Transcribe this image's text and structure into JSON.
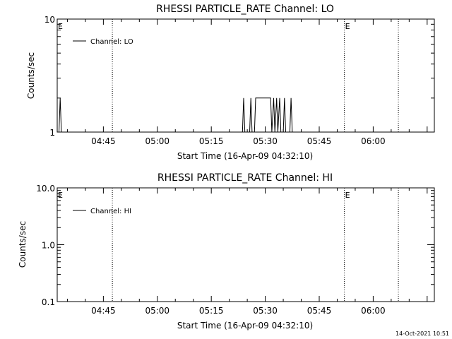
{
  "footer": {
    "timestamp": "14-Oct-2021 10:51"
  },
  "chart_data": [
    {
      "type": "line",
      "title": "RHESSI PARTICLE_RATE Channel: LO",
      "xlabel": "Start Time (16-Apr-09 04:32:10)",
      "ylabel": "Counts/sec",
      "yscale": "log",
      "ylim": [
        1,
        10
      ],
      "xlim": [
        "04:32:10",
        "06:17:00"
      ],
      "yticks": [
        "1",
        "10"
      ],
      "xticks": [
        "04:45",
        "05:00",
        "05:15",
        "05:30",
        "05:45",
        "06:00"
      ],
      "legend": {
        "position": "top-left",
        "entries": [
          "Channel: LO"
        ]
      },
      "markers": [
        {
          "label": "E",
          "time": "04:32:10"
        },
        {
          "label": "E",
          "time": "05:52:00"
        }
      ],
      "vertical_lines": [
        "04:47:30",
        "05:52:00",
        "06:07:00"
      ],
      "series": [
        {
          "name": "Channel: LO",
          "points": [
            [
              "04:32:40",
              1
            ],
            [
              "04:33:00",
              2
            ],
            [
              "04:33:20",
              1
            ],
            [
              "05:23:40",
              1
            ],
            [
              "05:24:00",
              2
            ],
            [
              "05:24:20",
              1
            ],
            [
              "05:25:40",
              1
            ],
            [
              "05:26:00",
              2
            ],
            [
              "05:26:20",
              1
            ],
            [
              "05:27:00",
              1
            ],
            [
              "05:27:20",
              2
            ],
            [
              "05:31:30",
              2
            ],
            [
              "05:31:50",
              1
            ],
            [
              "05:32:20",
              2
            ],
            [
              "05:32:40",
              1
            ],
            [
              "05:33:10",
              2
            ],
            [
              "05:33:30",
              1
            ],
            [
              "05:34:00",
              2
            ],
            [
              "05:34:20",
              1
            ],
            [
              "05:35:00",
              1
            ],
            [
              "05:35:20",
              2
            ],
            [
              "05:35:40",
              1
            ],
            [
              "05:36:50",
              1
            ],
            [
              "05:37:10",
              2
            ],
            [
              "05:37:30",
              1
            ]
          ]
        }
      ]
    },
    {
      "type": "line",
      "title": "RHESSI PARTICLE_RATE Channel: HI",
      "xlabel": "Start Time (16-Apr-09 04:32:10)",
      "ylabel": "Counts/sec",
      "yscale": "log",
      "ylim": [
        0.1,
        10
      ],
      "xlim": [
        "04:32:10",
        "06:17:00"
      ],
      "yticks": [
        "0.1",
        "1.0",
        "10.0"
      ],
      "xticks": [
        "04:45",
        "05:00",
        "05:15",
        "05:30",
        "05:45",
        "06:00"
      ],
      "legend": {
        "position": "top-left",
        "entries": [
          "Channel: HI"
        ]
      },
      "markers": [
        {
          "label": "E",
          "time": "04:32:10"
        },
        {
          "label": "E",
          "time": "05:52:00"
        }
      ],
      "vertical_lines": [
        "04:47:30",
        "05:52:00",
        "06:07:00"
      ],
      "series": [
        {
          "name": "Channel: HI",
          "points": []
        }
      ]
    }
  ]
}
